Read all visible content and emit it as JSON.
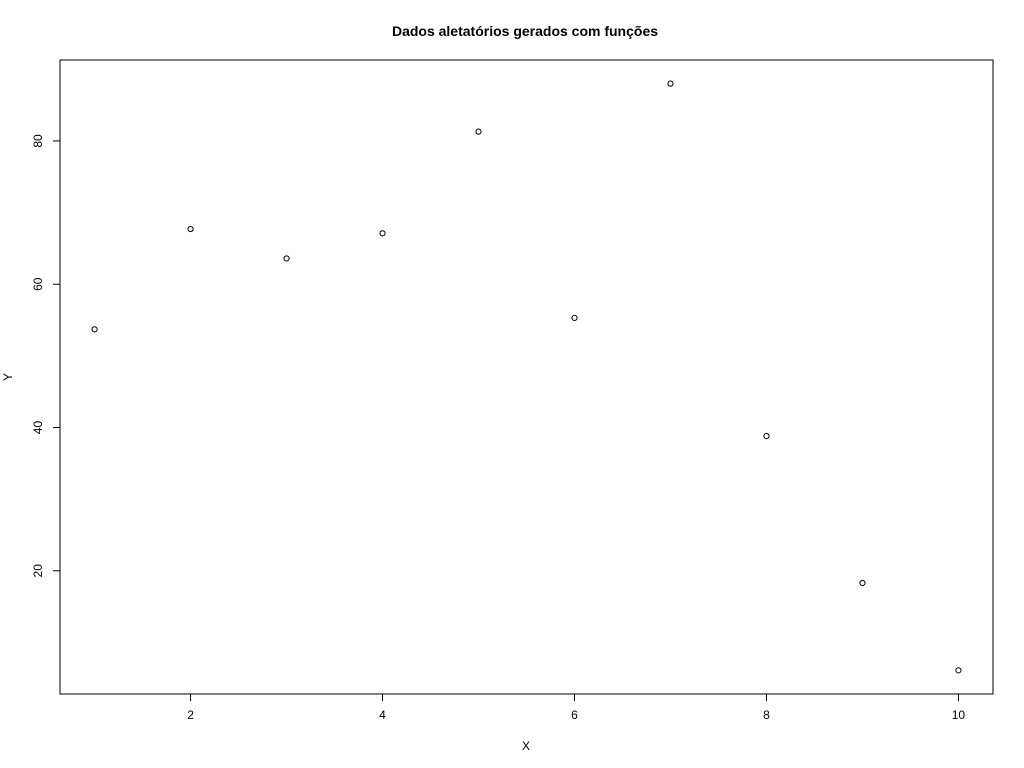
{
  "chart_data": {
    "type": "scatter",
    "title": "Dados aletatórios gerados com funções",
    "xlabel": "X",
    "ylabel": "Y",
    "x": [
      1,
      2,
      3,
      4,
      5,
      6,
      7,
      8,
      9,
      10
    ],
    "y": [
      53.7,
      67.7,
      63.6,
      67.1,
      81.3,
      55.3,
      88.0,
      38.8,
      18.3,
      6.1
    ],
    "xlim": [
      0.64,
      10.36
    ],
    "ylim": [
      2.8,
      91.3
    ],
    "xticks": [
      2,
      4,
      6,
      8,
      10
    ],
    "yticks": [
      20,
      40,
      60,
      80
    ],
    "marker": "open-circle",
    "grid": false,
    "colors": {
      "points": "#000000",
      "frame": "#000000"
    }
  }
}
